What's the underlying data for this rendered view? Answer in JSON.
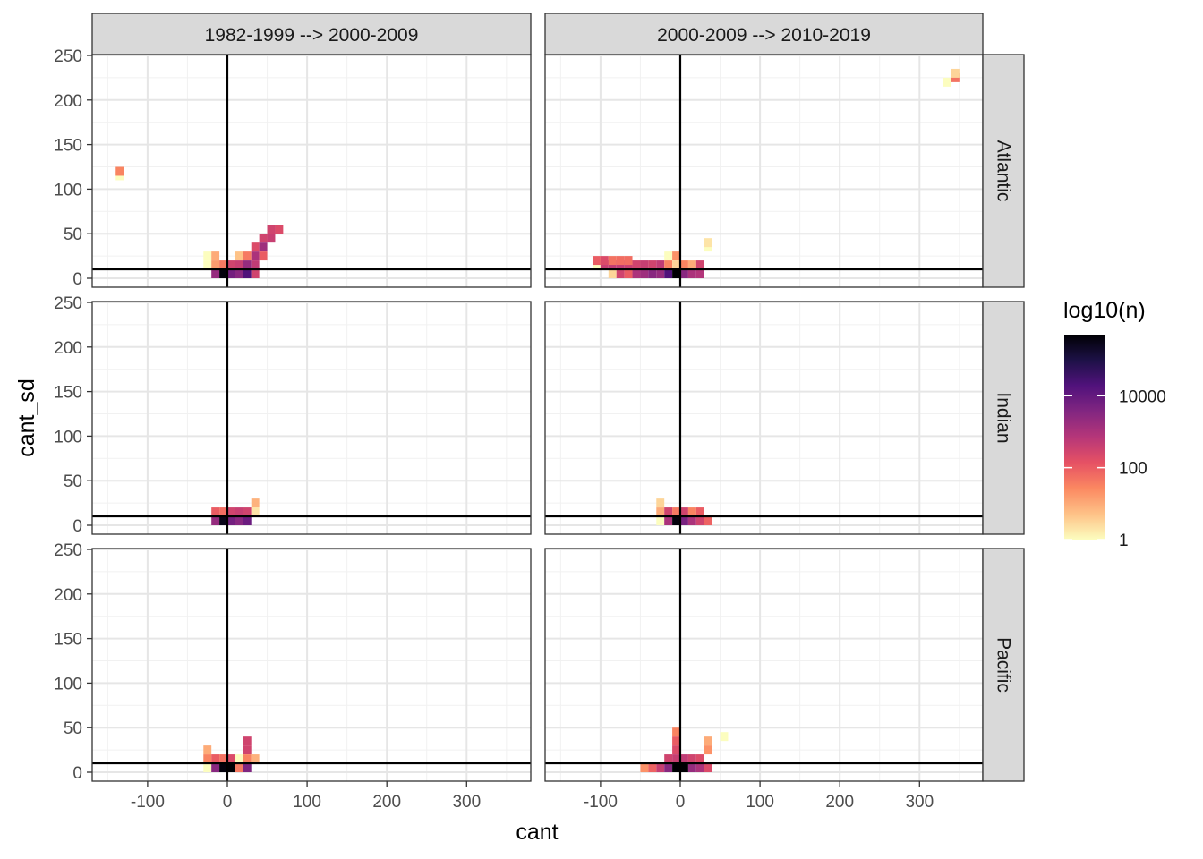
{
  "chart_data": {
    "type": "heatmap",
    "title": "",
    "xlabel": "cant",
    "ylabel": "cant_sd",
    "xlim": [
      -170,
      375
    ],
    "ylim": [
      -10,
      250
    ],
    "x_ticks": [
      -100,
      0,
      100,
      200,
      300
    ],
    "y_ticks": [
      0,
      50,
      100,
      150,
      200,
      250
    ],
    "x_tick_labels": [
      "-100",
      "0",
      "100",
      "200",
      "300"
    ],
    "y_tick_labels": [
      "0",
      "50",
      "100",
      "150",
      "200",
      "250"
    ],
    "bin_width": 10,
    "hline_y": 10,
    "vline_x": 0,
    "col_facets": [
      "1982-1999 --> 2000-2009",
      "2000-2009 --> 2010-2019"
    ],
    "row_facets": [
      "Atlantic",
      "Indian",
      "Pacific"
    ],
    "legend": {
      "title": "log10(n)",
      "position": "right",
      "scale": "log10",
      "min": 1,
      "max": 500000,
      "breaks": [
        1,
        100,
        10000
      ],
      "break_labels": [
        "1",
        "100",
        "10000"
      ],
      "colors": [
        "#FCFDBF",
        "#FEC287",
        "#FB8861",
        "#E65164",
        "#B63679",
        "#822681",
        "#51127C",
        "#1D1147",
        "#000004"
      ]
    },
    "panels": [
      {
        "row": "Atlantic",
        "col": "1982-1999 --> 2000-2009",
        "bins": [
          [
            -135,
            115,
            1
          ],
          [
            -135,
            120,
            30
          ],
          [
            -25,
            25,
            1
          ],
          [
            -25,
            15,
            1
          ],
          [
            -15,
            25,
            10
          ],
          [
            -15,
            15,
            15
          ],
          [
            -15,
            5,
            2000
          ],
          [
            -5,
            15,
            40
          ],
          [
            -5,
            5,
            400000
          ],
          [
            5,
            15,
            300
          ],
          [
            5,
            5,
            6000
          ],
          [
            15,
            25,
            5
          ],
          [
            15,
            15,
            400
          ],
          [
            15,
            5,
            3000
          ],
          [
            25,
            25,
            40
          ],
          [
            25,
            15,
            2000
          ],
          [
            25,
            5,
            20000
          ],
          [
            35,
            35,
            200
          ],
          [
            35,
            25,
            1000
          ],
          [
            35,
            15,
            500
          ],
          [
            35,
            5,
            300
          ],
          [
            45,
            45,
            300
          ],
          [
            45,
            35,
            1500
          ],
          [
            45,
            25,
            100
          ],
          [
            55,
            45,
            400
          ],
          [
            55,
            55,
            300
          ],
          [
            65,
            55,
            200
          ]
        ]
      },
      {
        "row": "Atlantic",
        "col": "2000-2009 --> 2010-2019",
        "bins": [
          [
            -105,
            15,
            1
          ],
          [
            -105,
            20,
            100
          ],
          [
            -95,
            15,
            400
          ],
          [
            -95,
            20,
            200
          ],
          [
            -85,
            15,
            500
          ],
          [
            -85,
            5,
            3
          ],
          [
            -85,
            20,
            50
          ],
          [
            -75,
            15,
            500
          ],
          [
            -75,
            5,
            300
          ],
          [
            -75,
            20,
            60
          ],
          [
            -65,
            15,
            400
          ],
          [
            -65,
            5,
            100
          ],
          [
            -65,
            20,
            60
          ],
          [
            -55,
            15,
            300
          ],
          [
            -55,
            5,
            1000
          ],
          [
            -45,
            15,
            400
          ],
          [
            -45,
            5,
            1500
          ],
          [
            -35,
            15,
            300
          ],
          [
            -35,
            5,
            3000
          ],
          [
            -25,
            15,
            500
          ],
          [
            -25,
            5,
            2000
          ],
          [
            -15,
            25,
            1
          ],
          [
            -15,
            15,
            30
          ],
          [
            -15,
            5,
            20000
          ],
          [
            -5,
            25,
            20
          ],
          [
            -5,
            15,
            3
          ],
          [
            -5,
            5,
            500000
          ],
          [
            5,
            15,
            30
          ],
          [
            5,
            5,
            3000
          ],
          [
            15,
            15,
            10
          ],
          [
            15,
            5,
            1000
          ],
          [
            25,
            15,
            300
          ],
          [
            25,
            5,
            800
          ],
          [
            35,
            35,
            1
          ],
          [
            35,
            40,
            2
          ],
          [
            335,
            220,
            1
          ],
          [
            345,
            225,
            50
          ],
          [
            345,
            230,
            3
          ]
        ]
      },
      {
        "row": "Indian",
        "col": "1982-1999 --> 2000-2009",
        "bins": [
          [
            -15,
            15,
            100
          ],
          [
            -15,
            5,
            2000
          ],
          [
            -5,
            15,
            60
          ],
          [
            -5,
            5,
            300000
          ],
          [
            5,
            15,
            300
          ],
          [
            5,
            5,
            6000
          ],
          [
            15,
            15,
            400
          ],
          [
            15,
            5,
            3000
          ],
          [
            25,
            15,
            300
          ],
          [
            25,
            5,
            8000
          ],
          [
            35,
            15,
            2
          ],
          [
            35,
            25,
            8
          ]
        ]
      },
      {
        "row": "Indian",
        "col": "2000-2009 --> 2010-2019",
        "bins": [
          [
            -25,
            25,
            3
          ],
          [
            -25,
            15,
            10
          ],
          [
            -25,
            5,
            1
          ],
          [
            -15,
            15,
            300
          ],
          [
            -15,
            5,
            1000
          ],
          [
            -5,
            15,
            40
          ],
          [
            -5,
            5,
            400000
          ],
          [
            5,
            15,
            300
          ],
          [
            5,
            5,
            5000
          ],
          [
            15,
            15,
            30
          ],
          [
            15,
            5,
            1000
          ],
          [
            25,
            15,
            100
          ],
          [
            25,
            5,
            300
          ],
          [
            35,
            5,
            80
          ]
        ]
      },
      {
        "row": "Pacific",
        "col": "1982-1999 --> 2000-2009",
        "bins": [
          [
            -25,
            25,
            10
          ],
          [
            -25,
            15,
            30
          ],
          [
            -25,
            5,
            1
          ],
          [
            -15,
            15,
            100
          ],
          [
            -15,
            5,
            3000
          ],
          [
            -5,
            15,
            50
          ],
          [
            -5,
            5,
            400000
          ],
          [
            5,
            15,
            200
          ],
          [
            5,
            5,
            500000
          ],
          [
            15,
            15,
            1
          ],
          [
            15,
            5,
            40
          ],
          [
            25,
            35,
            300
          ],
          [
            25,
            25,
            300
          ],
          [
            25,
            15,
            30
          ],
          [
            25,
            5,
            4000
          ],
          [
            35,
            15,
            8
          ]
        ]
      },
      {
        "row": "Pacific",
        "col": "2000-2009 --> 2010-2019",
        "bins": [
          [
            -45,
            5,
            20
          ],
          [
            -35,
            5,
            80
          ],
          [
            -25,
            5,
            400
          ],
          [
            -15,
            15,
            300
          ],
          [
            -15,
            5,
            3000
          ],
          [
            -5,
            45,
            30
          ],
          [
            -5,
            35,
            100
          ],
          [
            -5,
            25,
            200
          ],
          [
            -5,
            15,
            400
          ],
          [
            -5,
            5,
            500000
          ],
          [
            5,
            15,
            500
          ],
          [
            5,
            5,
            500000
          ],
          [
            15,
            15,
            300
          ],
          [
            15,
            5,
            2000
          ],
          [
            25,
            15,
            200
          ],
          [
            25,
            5,
            1000
          ],
          [
            35,
            35,
            10
          ],
          [
            35,
            25,
            20
          ],
          [
            35,
            5,
            200
          ],
          [
            55,
            40,
            1
          ]
        ]
      }
    ]
  }
}
